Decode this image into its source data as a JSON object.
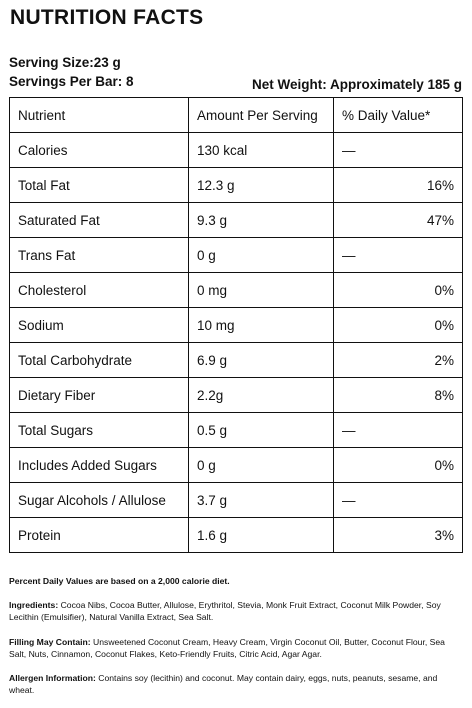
{
  "title": "NUTRITION FACTS",
  "serving_size": "Serving Size:23 g",
  "servings_per_bar": "Servings Per Bar: 8",
  "net_weight": "Net Weight: Approximately 185 g",
  "table": {
    "header": [
      "Nutrient",
      "Amount Per Serving",
      "% Daily Value*"
    ],
    "rows": [
      [
        "Calories",
        "130 kcal",
        "—"
      ],
      [
        "Total Fat",
        "12.3 g",
        "16%"
      ],
      [
        "Saturated Fat",
        "9.3 g",
        "47%"
      ],
      [
        "Trans Fat",
        "0 g",
        "—"
      ],
      [
        "Cholesterol",
        "0 mg",
        "0%"
      ],
      [
        "Sodium",
        "10 mg",
        "0%"
      ],
      [
        "Total Carbohydrate",
        "6.9 g",
        "2%"
      ],
      [
        "Dietary Fiber",
        "2.2g",
        "8%"
      ],
      [
        "Total Sugars",
        "0.5 g",
        "—"
      ],
      [
        "Includes Added Sugars",
        "0 g",
        "0%"
      ],
      [
        "Sugar Alcohols / Allulose",
        "3.7 g",
        "—"
      ],
      [
        "Protein",
        "1.6 g",
        "3%"
      ]
    ]
  },
  "footnote": "Percent Daily Values are based on a 2,000 calorie diet.",
  "ingredients": {
    "label": "Ingredients:",
    "text": "Cocoa Nibs, Cocoa Butter, Allulose, Erythritol, Stevia, Monk Fruit Extract, Coconut Milk Powder, Soy Lecithin (Emulsifier), Natural Vanilla Extract, Sea Salt."
  },
  "filling": {
    "label": "Filling May Contain:",
    "text": "Unsweetened Coconut Cream, Heavy Cream, Virgin Coconut Oil, Butter, Coconut Flour, Sea Salt, Nuts, Cinnamon, Coconut Flakes, Keto-Friendly Fruits, Citric Acid, Agar Agar."
  },
  "allergen": {
    "label": "Allergen Information:",
    "text": "Contains soy (lecithin) and coconut. May contain dairy, eggs, nuts, peanuts, sesame, and wheat."
  }
}
